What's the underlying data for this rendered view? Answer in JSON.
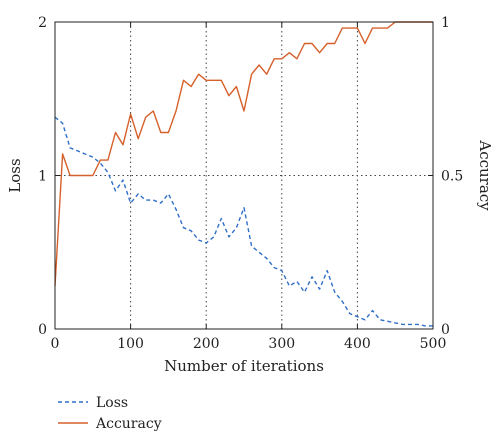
{
  "chart_data": {
    "type": "line",
    "xlabel": "Number of iterations",
    "ylabel_left": "Loss",
    "ylabel_right": "Accuracy",
    "xlim": [
      0,
      500
    ],
    "ylim_left": [
      0,
      2
    ],
    "ylim_right": [
      0,
      1
    ],
    "x_ticks": [
      0,
      100,
      200,
      300,
      400,
      500
    ],
    "y_left_ticks": [
      0,
      1,
      2
    ],
    "y_right_ticks": [
      0,
      0.5,
      1
    ],
    "grid": "dotted, at x ticks and y=1",
    "legend_position": "bottom-left, below plot",
    "series": [
      {
        "name": "Loss",
        "axis": "left",
        "style": "dashed",
        "color": "#2f6fc8",
        "points": [
          [
            0,
            1.38
          ],
          [
            10,
            1.34
          ],
          [
            20,
            1.18
          ],
          [
            30,
            1.16
          ],
          [
            40,
            1.14
          ],
          [
            50,
            1.12
          ],
          [
            60,
            1.08
          ],
          [
            70,
            1.02
          ],
          [
            80,
            0.9
          ],
          [
            90,
            0.97
          ],
          [
            100,
            0.82
          ],
          [
            110,
            0.88
          ],
          [
            120,
            0.84
          ],
          [
            130,
            0.84
          ],
          [
            140,
            0.82
          ],
          [
            150,
            0.88
          ],
          [
            160,
            0.78
          ],
          [
            170,
            0.66
          ],
          [
            180,
            0.64
          ],
          [
            190,
            0.58
          ],
          [
            200,
            0.56
          ],
          [
            210,
            0.6
          ],
          [
            220,
            0.72
          ],
          [
            230,
            0.6
          ],
          [
            240,
            0.66
          ],
          [
            250,
            0.79
          ],
          [
            260,
            0.54
          ],
          [
            270,
            0.5
          ],
          [
            280,
            0.46
          ],
          [
            290,
            0.4
          ],
          [
            300,
            0.38
          ],
          [
            310,
            0.28
          ],
          [
            320,
            0.31
          ],
          [
            330,
            0.24
          ],
          [
            340,
            0.34
          ],
          [
            350,
            0.26
          ],
          [
            360,
            0.38
          ],
          [
            370,
            0.24
          ],
          [
            380,
            0.18
          ],
          [
            390,
            0.1
          ],
          [
            400,
            0.08
          ],
          [
            410,
            0.06
          ],
          [
            420,
            0.12
          ],
          [
            430,
            0.06
          ],
          [
            440,
            0.05
          ],
          [
            450,
            0.04
          ],
          [
            460,
            0.03
          ],
          [
            470,
            0.03
          ],
          [
            480,
            0.03
          ],
          [
            490,
            0.02
          ],
          [
            500,
            0.02
          ]
        ]
      },
      {
        "name": "Accuracy",
        "axis": "right",
        "style": "solid",
        "color": "#d6602a",
        "points": [
          [
            0,
            0.14
          ],
          [
            10,
            0.57
          ],
          [
            20,
            0.5
          ],
          [
            30,
            0.5
          ],
          [
            40,
            0.5
          ],
          [
            50,
            0.5
          ],
          [
            60,
            0.55
          ],
          [
            70,
            0.55
          ],
          [
            80,
            0.64
          ],
          [
            90,
            0.6
          ],
          [
            100,
            0.7
          ],
          [
            110,
            0.62
          ],
          [
            120,
            0.69
          ],
          [
            130,
            0.71
          ],
          [
            140,
            0.64
          ],
          [
            150,
            0.64
          ],
          [
            160,
            0.71
          ],
          [
            170,
            0.81
          ],
          [
            180,
            0.79
          ],
          [
            190,
            0.83
          ],
          [
            200,
            0.81
          ],
          [
            210,
            0.81
          ],
          [
            220,
            0.81
          ],
          [
            230,
            0.76
          ],
          [
            240,
            0.79
          ],
          [
            250,
            0.71
          ],
          [
            260,
            0.83
          ],
          [
            270,
            0.86
          ],
          [
            280,
            0.83
          ],
          [
            290,
            0.88
          ],
          [
            300,
            0.88
          ],
          [
            310,
            0.9
          ],
          [
            320,
            0.88
          ],
          [
            330,
            0.93
          ],
          [
            340,
            0.93
          ],
          [
            350,
            0.9
          ],
          [
            360,
            0.93
          ],
          [
            370,
            0.93
          ],
          [
            380,
            0.98
          ],
          [
            390,
            0.98
          ],
          [
            400,
            0.98
          ],
          [
            410,
            0.93
          ],
          [
            420,
            0.98
          ],
          [
            430,
            0.98
          ],
          [
            440,
            0.98
          ],
          [
            450,
            1.0
          ],
          [
            460,
            1.0
          ],
          [
            470,
            1.0
          ],
          [
            480,
            1.0
          ],
          [
            490,
            1.0
          ],
          [
            500,
            1.0
          ]
        ]
      }
    ]
  }
}
